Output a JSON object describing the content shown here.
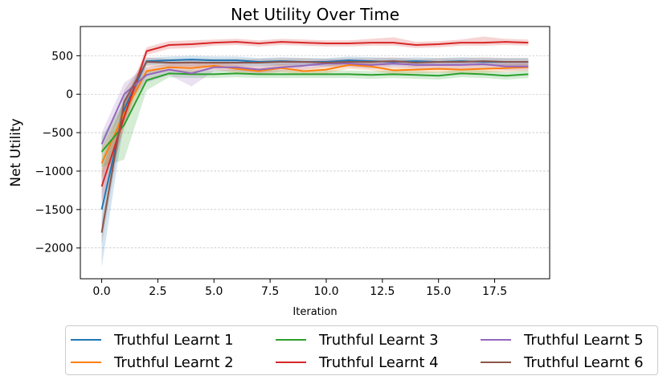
{
  "chart_data": {
    "type": "line",
    "title": "Net Utility Over Time",
    "xlabel": "Iteration",
    "ylabel": "Net Utility",
    "xlim": [
      -0.95,
      19.95
    ],
    "ylim": [
      -2400,
      880
    ],
    "xticks": [
      0.0,
      2.5,
      5.0,
      7.5,
      10.0,
      12.5,
      15.0,
      17.5
    ],
    "xtick_labels": [
      "0.0",
      "2.5",
      "5.0",
      "7.5",
      "10.0",
      "12.5",
      "15.0",
      "17.5"
    ],
    "yticks": [
      -2000,
      -1500,
      -1000,
      -500,
      0,
      500
    ],
    "ytick_labels": [
      "−2000",
      "−1500",
      "−1000",
      "−500",
      "0",
      "500"
    ],
    "grid": "horizontal dashed",
    "legend_position": "below plot, 3 columns",
    "x": [
      0,
      1,
      2,
      3,
      4,
      5,
      6,
      7,
      8,
      9,
      10,
      11,
      12,
      13,
      14,
      15,
      16,
      17,
      18,
      19
    ],
    "series": [
      {
        "name": "Truthful Learnt 1",
        "color": "#1f77b4",
        "values": [
          -1500,
          -200,
          430,
          440,
          450,
          440,
          440,
          420,
          430,
          420,
          420,
          440,
          430,
          420,
          430,
          420,
          430,
          420,
          420,
          420
        ],
        "lower": [
          -2250,
          -350,
          380,
          390,
          400,
          390,
          390,
          370,
          380,
          370,
          370,
          390,
          380,
          370,
          380,
          370,
          380,
          370,
          370,
          370
        ],
        "upper": [
          -850,
          -50,
          470,
          490,
          500,
          490,
          490,
          470,
          480,
          470,
          470,
          490,
          480,
          470,
          480,
          470,
          480,
          470,
          470,
          470
        ]
      },
      {
        "name": "Truthful Learnt 2",
        "color": "#ff7f0e",
        "values": [
          -900,
          -250,
          300,
          350,
          340,
          370,
          330,
          300,
          340,
          300,
          320,
          380,
          360,
          310,
          320,
          330,
          320,
          330,
          340,
          350
        ],
        "lower": [
          -1100,
          -400,
          250,
          300,
          290,
          320,
          280,
          250,
          290,
          250,
          270,
          330,
          310,
          260,
          270,
          280,
          270,
          280,
          290,
          300
        ],
        "upper": [
          -700,
          -100,
          350,
          400,
          390,
          420,
          380,
          350,
          390,
          350,
          370,
          430,
          410,
          360,
          370,
          380,
          370,
          380,
          390,
          400
        ]
      },
      {
        "name": "Truthful Learnt 3",
        "color": "#2ca02c",
        "values": [
          -750,
          -400,
          180,
          270,
          260,
          260,
          270,
          260,
          260,
          260,
          260,
          260,
          250,
          260,
          250,
          240,
          270,
          260,
          240,
          260
        ],
        "lower": [
          -950,
          -850,
          50,
          220,
          210,
          210,
          220,
          210,
          210,
          210,
          210,
          210,
          200,
          210,
          200,
          190,
          220,
          210,
          190,
          210
        ],
        "upper": [
          -550,
          -100,
          310,
          320,
          310,
          310,
          320,
          310,
          310,
          310,
          310,
          310,
          300,
          310,
          300,
          290,
          320,
          310,
          290,
          310
        ]
      },
      {
        "name": "Truthful Learnt 4",
        "color": "#d62728",
        "values": [
          -1200,
          -300,
          560,
          640,
          650,
          670,
          680,
          660,
          680,
          670,
          660,
          660,
          670,
          670,
          640,
          650,
          670,
          670,
          680,
          670
        ],
        "lower": [
          -1400,
          -450,
          510,
          590,
          600,
          630,
          640,
          620,
          640,
          630,
          620,
          620,
          630,
          630,
          600,
          610,
          630,
          630,
          640,
          630
        ],
        "upper": [
          -1000,
          -150,
          610,
          690,
          700,
          710,
          720,
          700,
          720,
          710,
          700,
          700,
          720,
          740,
          680,
          690,
          710,
          750,
          720,
          710
        ]
      },
      {
        "name": "Truthful Learnt 5",
        "color": "#9467bd",
        "values": [
          -650,
          0,
          250,
          320,
          270,
          350,
          350,
          320,
          350,
          370,
          400,
          400,
          380,
          400,
          380,
          380,
          380,
          390,
          360,
          360
        ],
        "lower": [
          -800,
          -150,
          150,
          250,
          100,
          300,
          300,
          270,
          300,
          320,
          350,
          350,
          330,
          350,
          330,
          330,
          330,
          340,
          310,
          310
        ],
        "upper": [
          -500,
          150,
          350,
          390,
          440,
          400,
          400,
          370,
          400,
          420,
          450,
          450,
          430,
          450,
          430,
          430,
          430,
          440,
          410,
          410
        ]
      },
      {
        "name": "Truthful Learnt 6",
        "color": "#8c564b",
        "values": [
          -1800,
          -100,
          420,
          410,
          410,
          410,
          410,
          410,
          420,
          420,
          410,
          420,
          420,
          430,
          410,
          420,
          420,
          430,
          420,
          420
        ],
        "lower": [
          -1950,
          -250,
          360,
          360,
          360,
          360,
          360,
          360,
          370,
          370,
          360,
          370,
          370,
          380,
          360,
          370,
          370,
          380,
          370,
          370
        ],
        "upper": [
          -1650,
          50,
          480,
          460,
          460,
          460,
          460,
          460,
          470,
          470,
          460,
          470,
          470,
          480,
          460,
          470,
          470,
          480,
          470,
          470
        ]
      }
    ]
  }
}
